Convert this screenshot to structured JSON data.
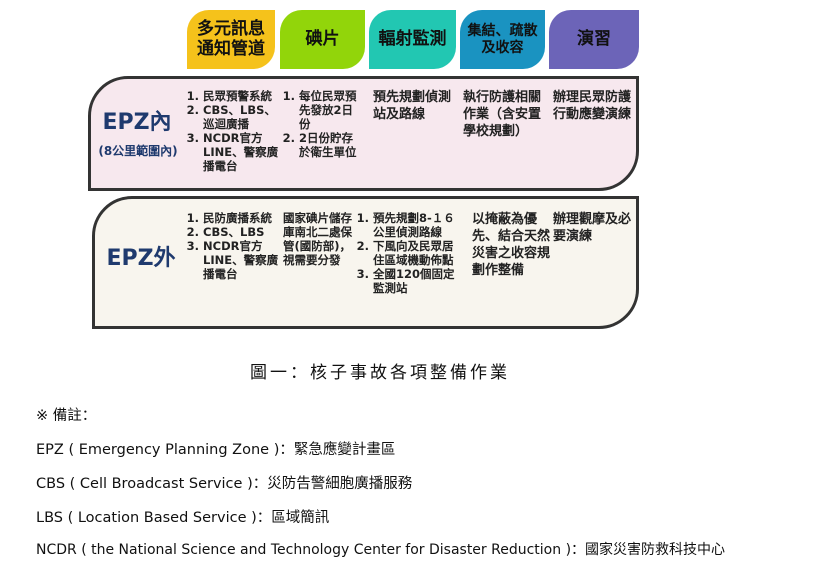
{
  "headers": [
    {
      "label": "多元訊息通知管道",
      "color": "#f5c21b"
    },
    {
      "label": "碘片",
      "color": "#92d50a"
    },
    {
      "label": "輻射監測",
      "color": "#22c7b2"
    },
    {
      "label": "集結、疏散及收容",
      "color": "#1a93c1"
    },
    {
      "label": "演習",
      "color": "#6c64b8"
    }
  ],
  "epz_in": {
    "title": "EPZ內",
    "subtitle": "(8公里範圍內)",
    "col1": [
      "民眾預警系統",
      "CBS、LBS、巡迴廣播",
      "NCDR官方LINE、警察廣播電台"
    ],
    "col2": [
      "每位民眾預先發放2日份",
      "2日份貯存於衛生單位"
    ],
    "col3": "預先規劃偵測站及路線",
    "col4": "執行防護相關作業（含安置學校規劃）",
    "col5": "辦理民眾防護行動應變演練"
  },
  "epz_out": {
    "title": "EPZ外",
    "col1": [
      "民防廣播系統",
      "CBS、LBS",
      "NCDR官方LINE、警察廣播電台"
    ],
    "col2": "國家碘片儲存庫南北二處保管(國防部)，視需要分發",
    "col3": [
      "預先規劃8-１６公里偵測路線",
      "下風向及民眾居住區域機動佈點",
      "全國120個固定監測站"
    ],
    "col4": "以掩蔽為優先、結合天然災害之收容規劃作整備",
    "col5": "辦理觀摩及必要演練"
  },
  "caption": "圖一：核子事故各項整備作業",
  "notes": [
    "※ 備註：",
    "EPZ ( Emergency Planning Zone )：緊急應變計畫區",
    "CBS ( Cell Broadcast Service )：災防告警細胞廣播服務",
    "LBS ( Location Based Service )：區域簡訊",
    "NCDR ( the National Science and Technology Center for Disaster Reduction )：國家災害防救科技中心"
  ]
}
